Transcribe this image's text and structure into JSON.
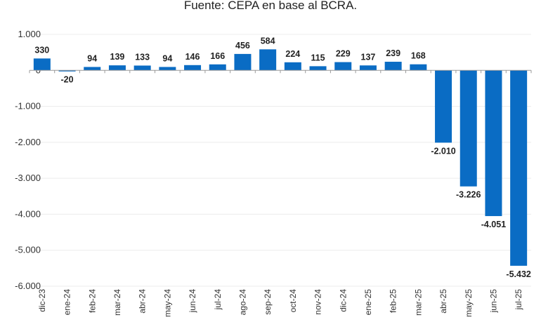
{
  "chart_data": {
    "type": "bar",
    "title": "Fuente: CEPA en base al BCRA.",
    "categories": [
      "dic-23",
      "ene-24",
      "feb-24",
      "mar-24",
      "abr-24",
      "may-24",
      "jun-24",
      "jul-24",
      "ago-24",
      "sep-24",
      "oct-24",
      "nov-24",
      "dic-24",
      "ene-25",
      "feb-25",
      "mar-25",
      "abr-25",
      "may-25",
      "jun-25",
      "jul-25"
    ],
    "values": [
      330,
      -20,
      94,
      139,
      133,
      94,
      146,
      166,
      456,
      584,
      224,
      115,
      229,
      137,
      239,
      168,
      -2010,
      -3226,
      -4051,
      -5432
    ],
    "value_labels": [
      "330",
      "-20",
      "94",
      "139",
      "133",
      "94",
      "146",
      "166",
      "456",
      "584",
      "224",
      "115",
      "229",
      "137",
      "239",
      "168",
      "-2.010",
      "-3.226",
      "-4.051",
      "-5.432"
    ],
    "ylim": [
      -6000,
      1000
    ],
    "yticks": [
      1000,
      0,
      -1000,
      -2000,
      -3000,
      -4000,
      -5000,
      -6000
    ],
    "ytick_labels": [
      "1.000",
      "0",
      "-1.000",
      "-2.000",
      "-3.000",
      "-4.000",
      "-5.000",
      "-6.000"
    ],
    "grid": true,
    "bar_color": "#0a6cc4",
    "xlabel": "",
    "ylabel": ""
  }
}
